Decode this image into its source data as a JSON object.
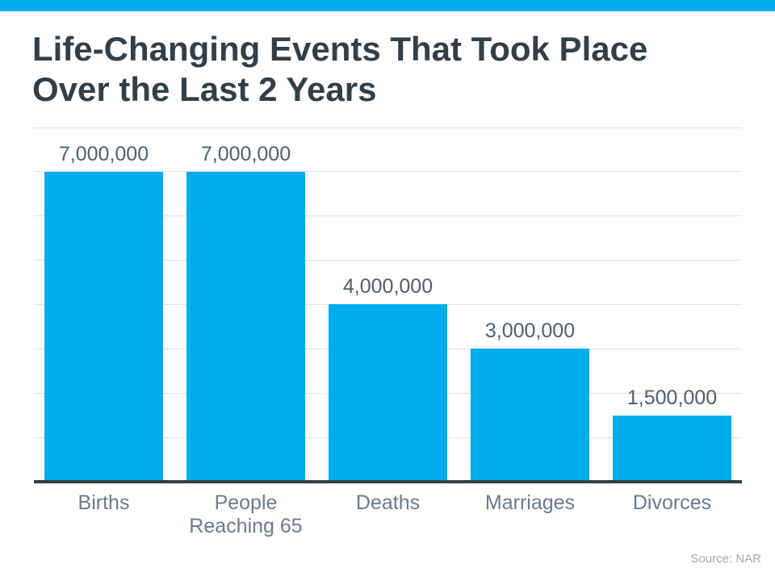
{
  "chart_data": {
    "type": "bar",
    "title": "Life-Changing Events That Took Place Over the Last 2 Years",
    "categories": [
      "Births",
      "People Reaching 65",
      "Deaths",
      "Marriages",
      "Divorces"
    ],
    "values": [
      7000000,
      7000000,
      4000000,
      3000000,
      1500000
    ],
    "value_labels": [
      "7,000,000",
      "7,000,000",
      "4,000,000",
      "3,000,000",
      "1,500,000"
    ],
    "source": "Source: NAR",
    "bar_color": "#00ACEB",
    "accent_color": "#00ACEB",
    "ylim": [
      0,
      8000000
    ],
    "gridline_step": 1000000,
    "grid": true,
    "legend": false,
    "xlabel": "",
    "ylabel": ""
  }
}
